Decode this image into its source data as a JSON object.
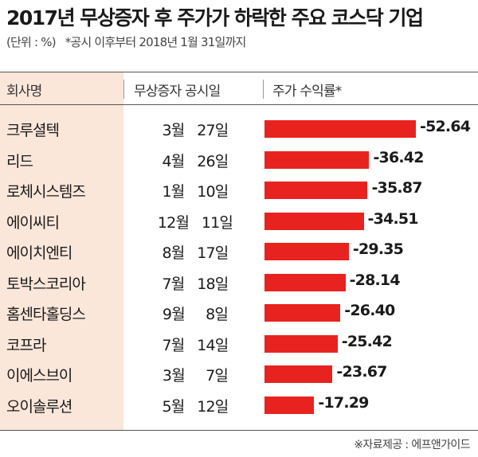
{
  "header": {
    "title": "2017년 무상증자 후 주가가 하락한 주요 코스닥 기업",
    "unit_note": "(단위 : %)",
    "period_note": "*공시 이후부터 2018년 1월 31일까지"
  },
  "table": {
    "col_company": "회사명",
    "col_date": "무상증자 공시일",
    "col_return": "주가 수익률*"
  },
  "chart_data": {
    "type": "bar",
    "orientation": "horizontal",
    "categories": [
      "크루셜텍",
      "리드",
      "로체시스템즈",
      "에이씨티",
      "에이치엔티",
      "토박스코리아",
      "홈센타홀딩스",
      "코프라",
      "이에스브이",
      "오이솔루션"
    ],
    "dates": [
      "3월   27일",
      "4월   26일",
      "1월   10일",
      "12월   11일",
      "8월   17일",
      "7월   18일",
      "9월     8일",
      "7월   14일",
      "3월     7일",
      "5월   12일"
    ],
    "values": [
      -52.64,
      -36.42,
      -35.87,
      -34.51,
      -29.35,
      -28.14,
      -26.4,
      -25.42,
      -23.67,
      -17.29
    ],
    "value_labels": [
      "-52.64",
      "-36.42",
      "-35.87",
      "-34.51",
      "-29.35",
      "-28.14",
      "-26.40",
      "-25.42",
      "-23.67",
      "-17.29"
    ],
    "bar_color": "#e8231f",
    "xlim": [
      0,
      -52.64
    ]
  },
  "footer": {
    "source": "※자료제공 : 에프앤가이드"
  }
}
